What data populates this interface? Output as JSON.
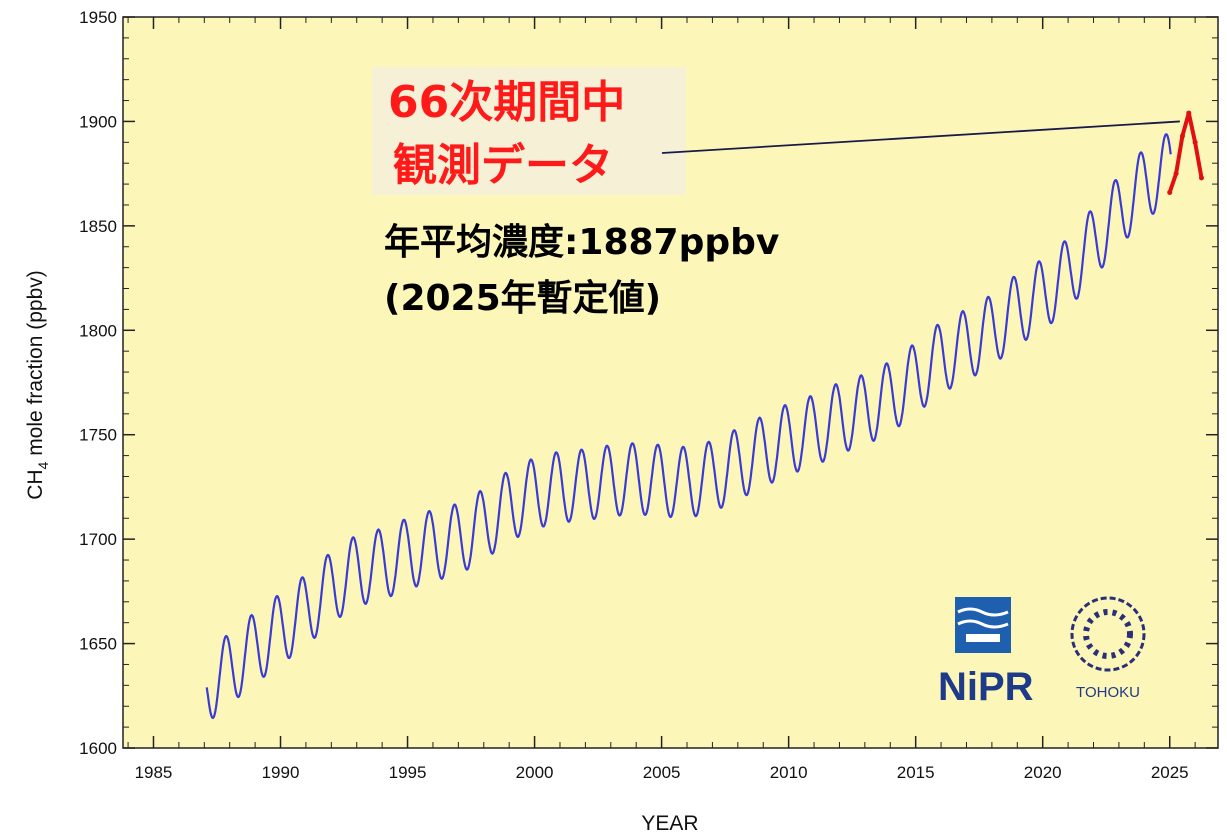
{
  "chart_data": {
    "type": "line",
    "xlabel": "YEAR",
    "ylabel_main": "CH",
    "ylabel_sub": "4",
    "ylabel_rest": " mole fraction (ppbv)",
    "xlim": [
      1983.8,
      2026.9
    ],
    "ylim": [
      1600,
      1950
    ],
    "x_ticks": [
      1985,
      1990,
      1995,
      2000,
      2005,
      2010,
      2015,
      2020,
      2025
    ],
    "y_ticks": [
      1600,
      1650,
      1700,
      1750,
      1800,
      1850,
      1900,
      1950
    ],
    "grid": false,
    "series": [
      {
        "color": "#3a3ad6",
        "x": [
          1987.0,
          1988.0,
          1989.0,
          1990.0,
          1991.0,
          1992.0,
          1993.0,
          1994.0,
          1995.0,
          1996.0,
          1997.0,
          1998.0,
          1999.0,
          2000.0,
          2001.0,
          2002.0,
          2003.0,
          2004.0,
          2005.0,
          2006.0,
          2007.0,
          2008.0,
          2009.0,
          2010.0,
          2011.0,
          2012.0,
          2013.0,
          2014.0,
          2015.0,
          2016.0,
          2017.0,
          2018.0,
          2019.0,
          2020.0,
          2021.0,
          2022.0,
          2023.0,
          2024.0,
          2025.0
        ],
        "y": [
          1628,
          1638,
          1648,
          1657,
          1666,
          1677,
          1685,
          1688,
          1693,
          1697,
          1700,
          1707,
          1716,
          1722,
          1725,
          1726,
          1728,
          1729,
          1728,
          1727,
          1730,
          1736,
          1742,
          1748,
          1752,
          1758,
          1762,
          1768,
          1777,
          1787,
          1793,
          1800,
          1810,
          1817,
          1827,
          1842,
          1857,
          1870,
          1878
        ],
        "amplitude": 17
      },
      {
        "color": "#e01010",
        "x": [
          2025.0,
          2025.25,
          2025.5,
          2025.75,
          2026.0,
          2026.25
        ],
        "y": [
          1866,
          1875,
          1893,
          1904,
          1890,
          1873
        ]
      }
    ],
    "annotation": {
      "red_line1": "66次期間中",
      "red_line2": "観測データ",
      "black_line1": "年平均濃度:1887ppbv",
      "black_line2": "(2025年暫定値)",
      "points_to": {
        "x": 2025.4,
        "y": 1900
      }
    }
  },
  "logos": {
    "nipr_text": "NiPR",
    "tohoku_text": "TOHOKU",
    "nipr_box_color": "#1f5fb0",
    "tohoku_color": "#2b2f7a"
  },
  "colors": {
    "plot_background": "#fcf7b8",
    "annotation_box": "#f5f0d6"
  }
}
